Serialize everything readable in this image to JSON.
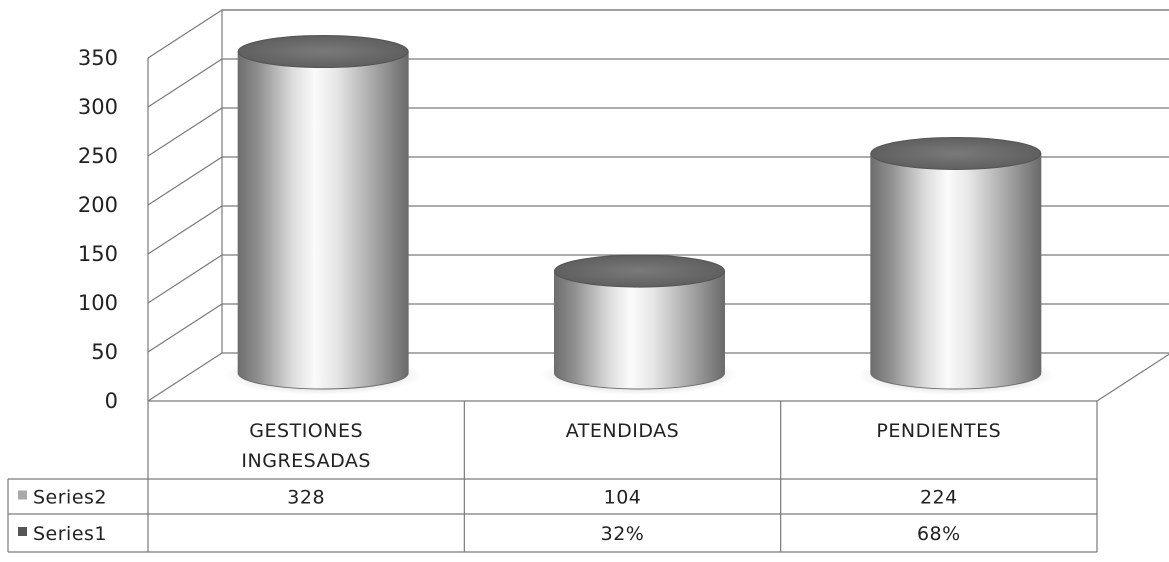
{
  "chart_data": {
    "type": "bar",
    "style": "3d-cylinder",
    "categories": [
      [
        "GESTIONES",
        "INGRESADAS"
      ],
      [
        "ATENDIDAS"
      ],
      [
        "PENDIENTES"
      ]
    ],
    "series": [
      {
        "name": "Series2",
        "values": [
          328,
          104,
          224
        ],
        "labels": [
          "328",
          "104",
          "224"
        ],
        "legend_color": "#a9a9a9"
      },
      {
        "name": "Series1",
        "values": [
          null,
          0.32,
          0.68
        ],
        "labels": [
          "",
          "32%",
          "68%"
        ],
        "legend_color": "#555555"
      }
    ],
    "y_ticks": [
      "0",
      "50",
      "100",
      "150",
      "200",
      "250",
      "300",
      "350"
    ],
    "ylim": [
      0,
      350
    ],
    "grid": true,
    "data_table": true,
    "title": "",
    "xlabel": "",
    "ylabel": ""
  }
}
